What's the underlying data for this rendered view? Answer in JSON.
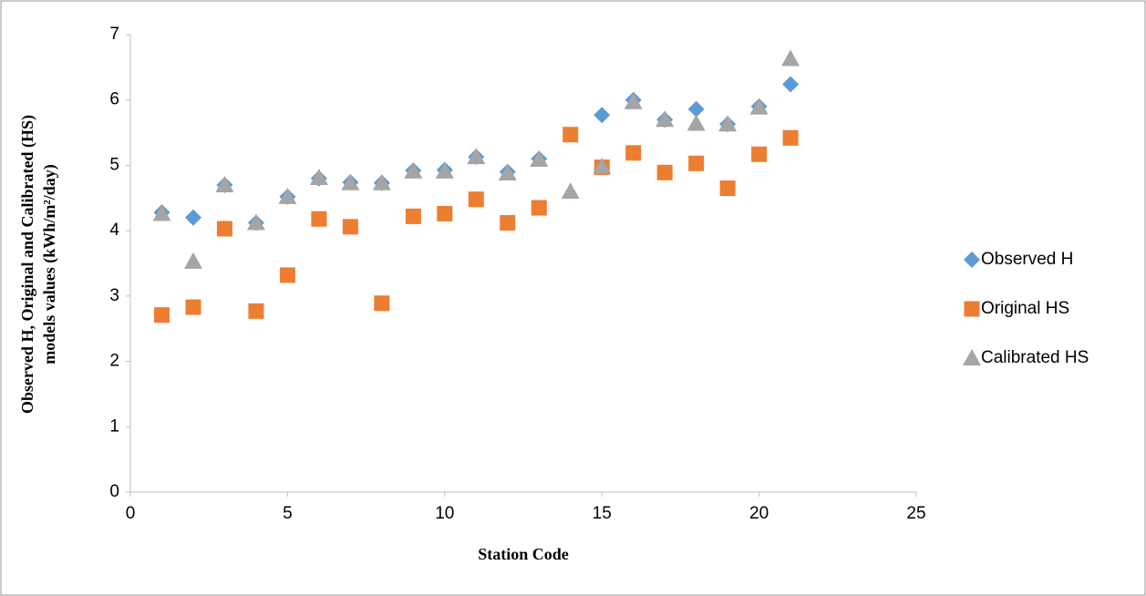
{
  "chart_data": {
    "type": "scatter",
    "xlabel": "Station Code",
    "ylabel": [
      "Observed H, Original and Calibrated (HS)",
      "models values (kWh/m²/day)"
    ],
    "x": [
      1,
      2,
      3,
      4,
      5,
      6,
      7,
      8,
      9,
      10,
      11,
      12,
      13,
      14,
      15,
      16,
      17,
      18,
      19,
      20,
      21
    ],
    "series": [
      {
        "name": "Observed H",
        "color": "#5b9bd5",
        "marker": "diamond",
        "values": [
          4.28,
          4.2,
          4.7,
          4.12,
          4.52,
          4.8,
          4.74,
          4.73,
          4.92,
          4.93,
          5.13,
          4.9,
          5.1,
          null,
          5.77,
          6.0,
          5.7,
          5.86,
          5.63,
          5.9,
          6.24
        ]
      },
      {
        "name": "Original HS",
        "color": "#ed7d31",
        "marker": "square",
        "values": [
          2.71,
          2.83,
          4.03,
          2.77,
          3.32,
          4.18,
          4.06,
          2.89,
          4.22,
          4.26,
          4.48,
          4.12,
          4.35,
          5.47,
          4.97,
          5.19,
          4.89,
          5.03,
          4.65,
          5.17,
          5.42
        ]
      },
      {
        "name": "Calibrated HS",
        "color": "#a5a5a5",
        "marker": "triangle",
        "values": [
          4.26,
          3.53,
          4.7,
          4.12,
          4.52,
          4.81,
          4.73,
          4.73,
          4.91,
          4.91,
          5.13,
          4.88,
          5.09,
          4.6,
          4.98,
          5.97,
          5.7,
          5.64,
          5.63,
          5.89,
          6.63
        ]
      }
    ],
    "xlim": [
      0,
      25
    ],
    "xticks": [
      0,
      5,
      10,
      15,
      20,
      25
    ],
    "ylim": [
      0,
      7
    ],
    "yticks": [
      0,
      1,
      2,
      3,
      4,
      5,
      6,
      7
    ],
    "legend": "right"
  }
}
